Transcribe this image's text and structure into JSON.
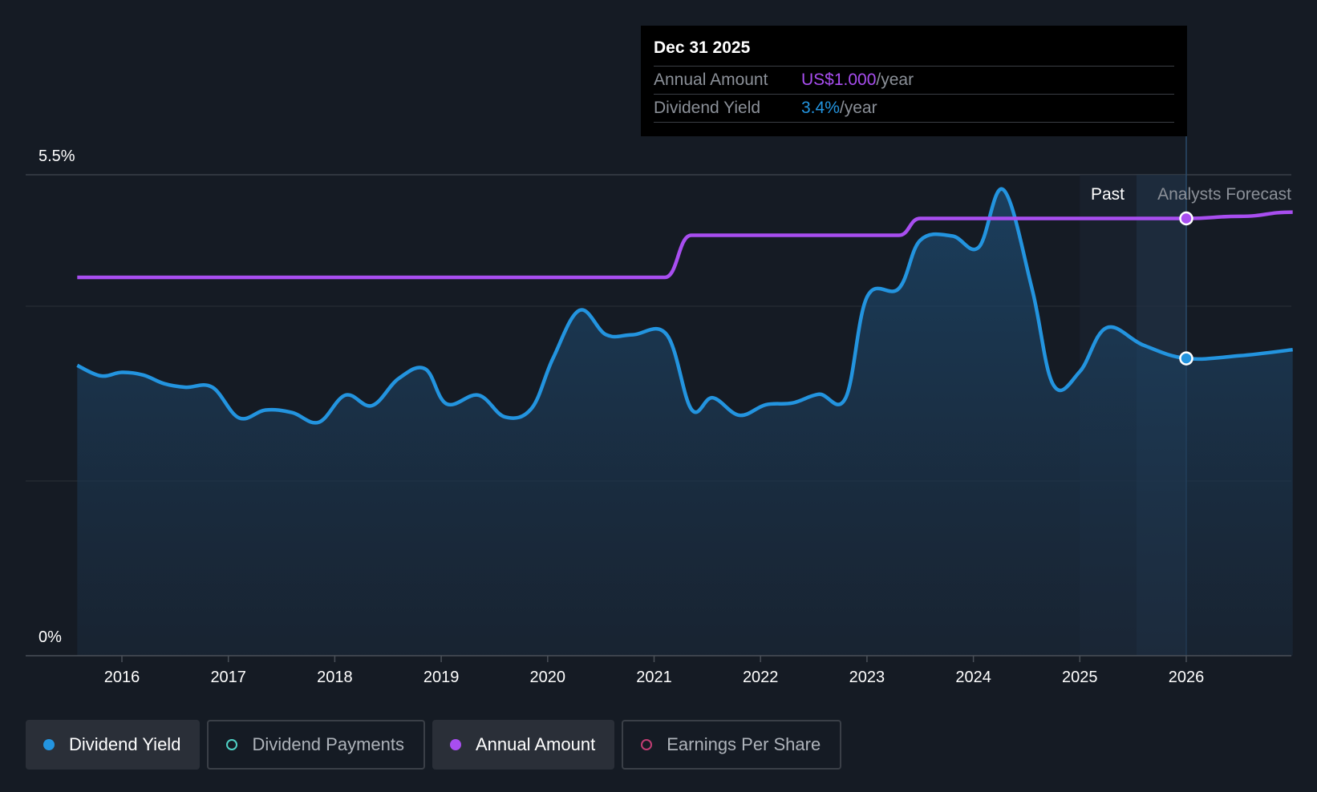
{
  "tooltip": {
    "date": "Dec 31 2025",
    "annual_amount_label": "Annual Amount",
    "annual_amount_value": "US$1.000",
    "annual_amount_unit": "/year",
    "dividend_yield_label": "Dividend Yield",
    "dividend_yield_value": "3.4%",
    "dividend_yield_unit": "/year"
  },
  "legend": {
    "dividend_yield": "Dividend Yield",
    "dividend_payments": "Dividend Payments",
    "annual_amount": "Annual Amount",
    "earnings_per_share": "Earnings Per Share"
  },
  "colors": {
    "background": "#151b24",
    "dividend_yield": "#2394df",
    "annual_amount": "#a84ef0",
    "dividend_payments": "#4fd1c5",
    "earnings_per_share": "#c13d73",
    "tooltip_bg": "#000000"
  },
  "chart_data": {
    "type": "line",
    "y_axis_labels": [
      "5.5%",
      "0%"
    ],
    "ylim": [
      0,
      5.5
    ],
    "xlim": [
      2015.2,
      2027.0
    ],
    "x_ticks": [
      "2016",
      "2017",
      "2018",
      "2019",
      "2020",
      "2021",
      "2022",
      "2023",
      "2024",
      "2025",
      "2026"
    ],
    "region_labels": {
      "past": "Past",
      "forecast": "Analysts Forecast"
    },
    "past_forecast_boundary": 2026.0,
    "series": [
      {
        "name": "Dividend Yield",
        "unit": "%",
        "points": [
          [
            2015.58,
            3.32
          ],
          [
            2015.8,
            3.2
          ],
          [
            2016.0,
            3.24
          ],
          [
            2016.2,
            3.21
          ],
          [
            2016.4,
            3.11
          ],
          [
            2016.6,
            3.07
          ],
          [
            2016.85,
            3.07
          ],
          [
            2017.1,
            2.72
          ],
          [
            2017.35,
            2.81
          ],
          [
            2017.6,
            2.78
          ],
          [
            2017.85,
            2.67
          ],
          [
            2018.1,
            2.98
          ],
          [
            2018.35,
            2.86
          ],
          [
            2018.6,
            3.17
          ],
          [
            2018.85,
            3.28
          ],
          [
            2019.05,
            2.88
          ],
          [
            2019.35,
            2.98
          ],
          [
            2019.6,
            2.73
          ],
          [
            2019.85,
            2.83
          ],
          [
            2020.05,
            3.4
          ],
          [
            2020.3,
            3.95
          ],
          [
            2020.55,
            3.67
          ],
          [
            2020.8,
            3.67
          ],
          [
            2021.12,
            3.67
          ],
          [
            2021.35,
            2.82
          ],
          [
            2021.55,
            2.95
          ],
          [
            2021.8,
            2.75
          ],
          [
            2022.05,
            2.87
          ],
          [
            2022.3,
            2.89
          ],
          [
            2022.55,
            2.99
          ],
          [
            2022.8,
            2.95
          ],
          [
            2023.0,
            4.1
          ],
          [
            2023.3,
            4.2
          ],
          [
            2023.5,
            4.75
          ],
          [
            2023.8,
            4.8
          ],
          [
            2024.05,
            4.67
          ],
          [
            2024.28,
            5.33
          ],
          [
            2024.55,
            4.2
          ],
          [
            2024.75,
            3.1
          ],
          [
            2025.0,
            3.25
          ],
          [
            2025.25,
            3.75
          ],
          [
            2025.6,
            3.55
          ],
          [
            2026.0,
            3.4
          ],
          [
            2026.5,
            3.43
          ],
          [
            2027.0,
            3.5
          ]
        ]
      },
      {
        "name": "Annual Amount",
        "unit": "US$/year",
        "points": [
          [
            2015.58,
            0.86
          ],
          [
            2021.1,
            0.86
          ],
          [
            2021.35,
            0.96
          ],
          [
            2023.3,
            0.96
          ],
          [
            2023.5,
            1.0
          ],
          [
            2026.0,
            1.0
          ],
          [
            2026.5,
            1.005
          ],
          [
            2027.0,
            1.015
          ]
        ]
      }
    ],
    "tooltip_point": {
      "x": "Dec 31 2025",
      "dividend_yield": 3.4,
      "annual_amount": 1.0
    }
  }
}
